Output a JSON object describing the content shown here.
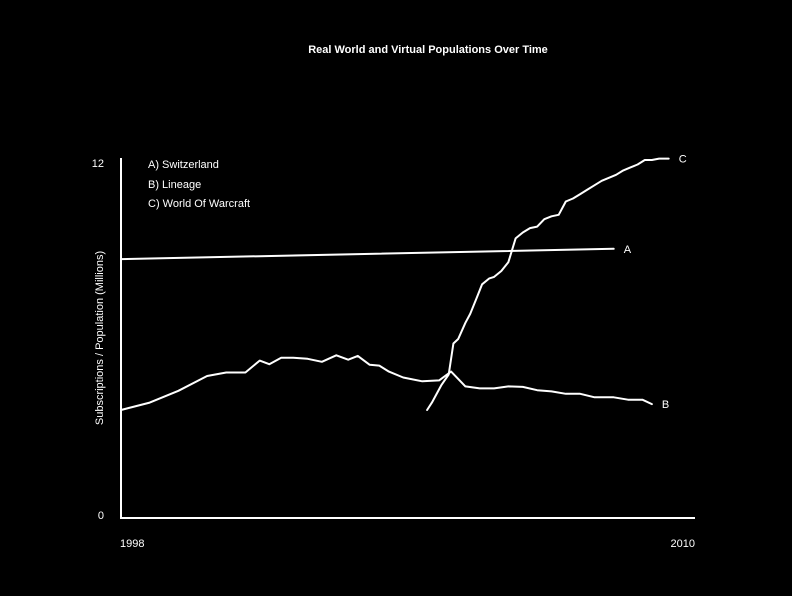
{
  "chart_data": {
    "type": "line",
    "title": "Real World and Virtual Populations Over Time",
    "xlabel": "",
    "ylabel": "Subscriptions / Population (Millions)",
    "xlim": [
      1998,
      2010
    ],
    "ylim": [
      0,
      12
    ],
    "x_tick_labels": [
      "1998",
      "2010"
    ],
    "y_tick_labels": [
      "0",
      "12"
    ],
    "grid": false,
    "legend": {
      "position": "top-left",
      "entries": [
        "A) Switzerland",
        "B) Lineage",
        "C) World Of Warcraft"
      ]
    },
    "series": [
      {
        "name": "A",
        "color": "#ffffff",
        "x": [
          1998,
          2008.3
        ],
        "y": [
          8.75,
          9.1
        ]
      },
      {
        "name": "B",
        "color": "#ffffff",
        "x": [
          1998,
          1998.6,
          1999.2,
          1999.8,
          2000.2,
          2000.6,
          2000.9,
          2001.1,
          2001.35,
          2001.6,
          2001.9,
          2002.2,
          2002.5,
          2002.75,
          2002.95,
          2003.2,
          2003.4,
          2003.6,
          2003.9,
          2004.3,
          2004.65,
          2004.9,
          2005.2,
          2005.5,
          2005.8,
          2006.1,
          2006.4,
          2006.7,
          2007.0,
          2007.3,
          2007.6,
          2007.9,
          2008.3,
          2008.6,
          2008.9,
          2009.1
        ],
        "y": [
          3.65,
          3.9,
          4.3,
          4.8,
          4.92,
          4.92,
          5.32,
          5.2,
          5.42,
          5.42,
          5.38,
          5.28,
          5.5,
          5.35,
          5.48,
          5.18,
          5.15,
          4.95,
          4.75,
          4.62,
          4.65,
          4.95,
          4.45,
          4.38,
          4.38,
          4.45,
          4.43,
          4.32,
          4.28,
          4.2,
          4.2,
          4.08,
          4.08,
          4.0,
          4.0,
          3.85
        ]
      },
      {
        "name": "C",
        "color": "#ffffff",
        "x": [
          2004.4,
          2004.5,
          2004.7,
          2004.85,
          2004.95,
          2005.05,
          2005.2,
          2005.3,
          2005.45,
          2005.55,
          2005.7,
          2005.8,
          2005.95,
          2006.1,
          2006.25,
          2006.4,
          2006.55,
          2006.7,
          2006.85,
          2007.0,
          2007.15,
          2007.3,
          2007.45,
          2007.6,
          2007.75,
          2007.9,
          2008.05,
          2008.2,
          2008.35,
          2008.5,
          2008.65,
          2008.8,
          2008.95,
          2009.1,
          2009.25,
          2009.45
        ],
        "y": [
          3.65,
          3.9,
          4.5,
          4.85,
          5.9,
          6.05,
          6.6,
          6.9,
          7.5,
          7.9,
          8.1,
          8.15,
          8.35,
          8.65,
          9.45,
          9.65,
          9.8,
          9.85,
          10.1,
          10.2,
          10.25,
          10.7,
          10.8,
          10.95,
          11.1,
          11.25,
          11.4,
          11.5,
          11.6,
          11.75,
          11.85,
          11.95,
          12.1,
          12.1,
          12.15,
          12.15
        ]
      }
    ]
  }
}
